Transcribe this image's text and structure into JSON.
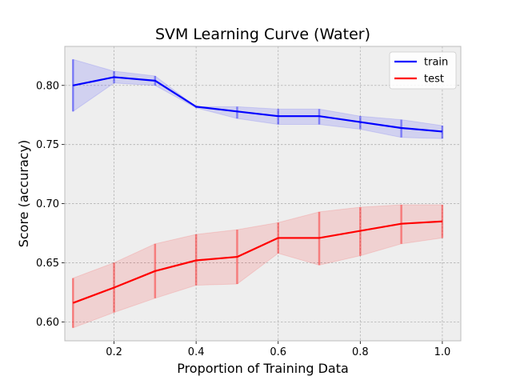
{
  "chart_data": {
    "type": "line",
    "title": "SVM Learning Curve (Water)",
    "xlabel": "Proportion of Training Data",
    "ylabel": "Score (accuracy)",
    "xlim": [
      0.08,
      1.045
    ],
    "ylim": [
      0.584,
      0.833
    ],
    "xticks": [
      0.2,
      0.4,
      0.6,
      0.8,
      1.0
    ],
    "xtick_labels": [
      "0.2",
      "0.4",
      "0.6",
      "0.8",
      "1.0"
    ],
    "yticks": [
      0.6,
      0.65,
      0.7,
      0.75,
      0.8
    ],
    "ytick_labels": [
      "0.60",
      "0.65",
      "0.70",
      "0.75",
      "0.80"
    ],
    "grid": true,
    "legend_position": "top-right",
    "x": [
      0.1,
      0.2,
      0.3,
      0.4,
      0.5,
      0.6,
      0.7,
      0.8,
      0.9,
      1.0
    ],
    "series": [
      {
        "name": "train",
        "color": "#0000ff",
        "values": [
          0.8,
          0.807,
          0.804,
          0.782,
          0.778,
          0.774,
          0.774,
          0.769,
          0.764,
          0.761
        ],
        "lower": [
          0.778,
          0.802,
          0.8,
          0.781,
          0.772,
          0.767,
          0.767,
          0.763,
          0.756,
          0.755
        ],
        "upper": [
          0.822,
          0.812,
          0.808,
          0.782,
          0.782,
          0.78,
          0.78,
          0.774,
          0.771,
          0.766
        ]
      },
      {
        "name": "test",
        "color": "#ff0000",
        "values": [
          0.616,
          0.629,
          0.643,
          0.652,
          0.655,
          0.671,
          0.671,
          0.677,
          0.683,
          0.685
        ],
        "lower": [
          0.595,
          0.608,
          0.62,
          0.631,
          0.632,
          0.658,
          0.648,
          0.656,
          0.666,
          0.671
        ],
        "upper": [
          0.637,
          0.65,
          0.666,
          0.674,
          0.678,
          0.684,
          0.693,
          0.697,
          0.699,
          0.699
        ]
      }
    ]
  }
}
